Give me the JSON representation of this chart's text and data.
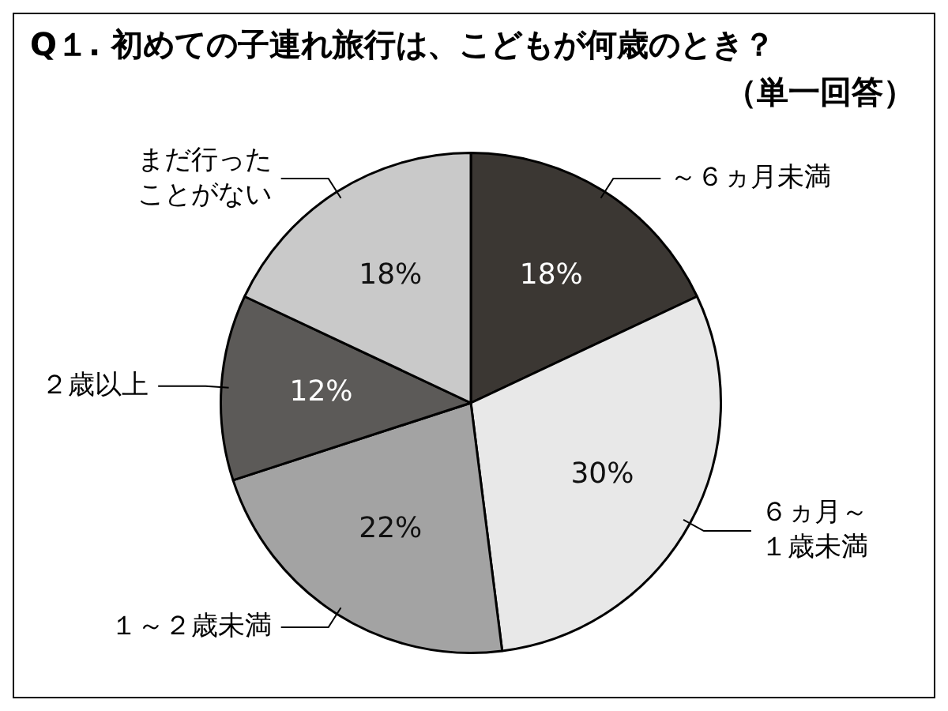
{
  "chart_data": {
    "type": "pie",
    "title": "Q１. 初めての子連れ旅行は、こどもが何歳のとき？",
    "subtitle": "（単一回答）",
    "categories": [
      "～６ヵ月未満",
      "６ヵ月～１歳未満",
      "１～２歳未満",
      "２歳以上",
      "まだ行ったことがない"
    ],
    "values": [
      18,
      30,
      22,
      12,
      18
    ],
    "colors": [
      "#3b3733",
      "#e8e8e8",
      "#a3a3a3",
      "#5c5a58",
      "#c9c9c9"
    ],
    "value_labels": [
      "18%",
      "30%",
      "22%",
      "12%",
      "18%"
    ]
  }
}
